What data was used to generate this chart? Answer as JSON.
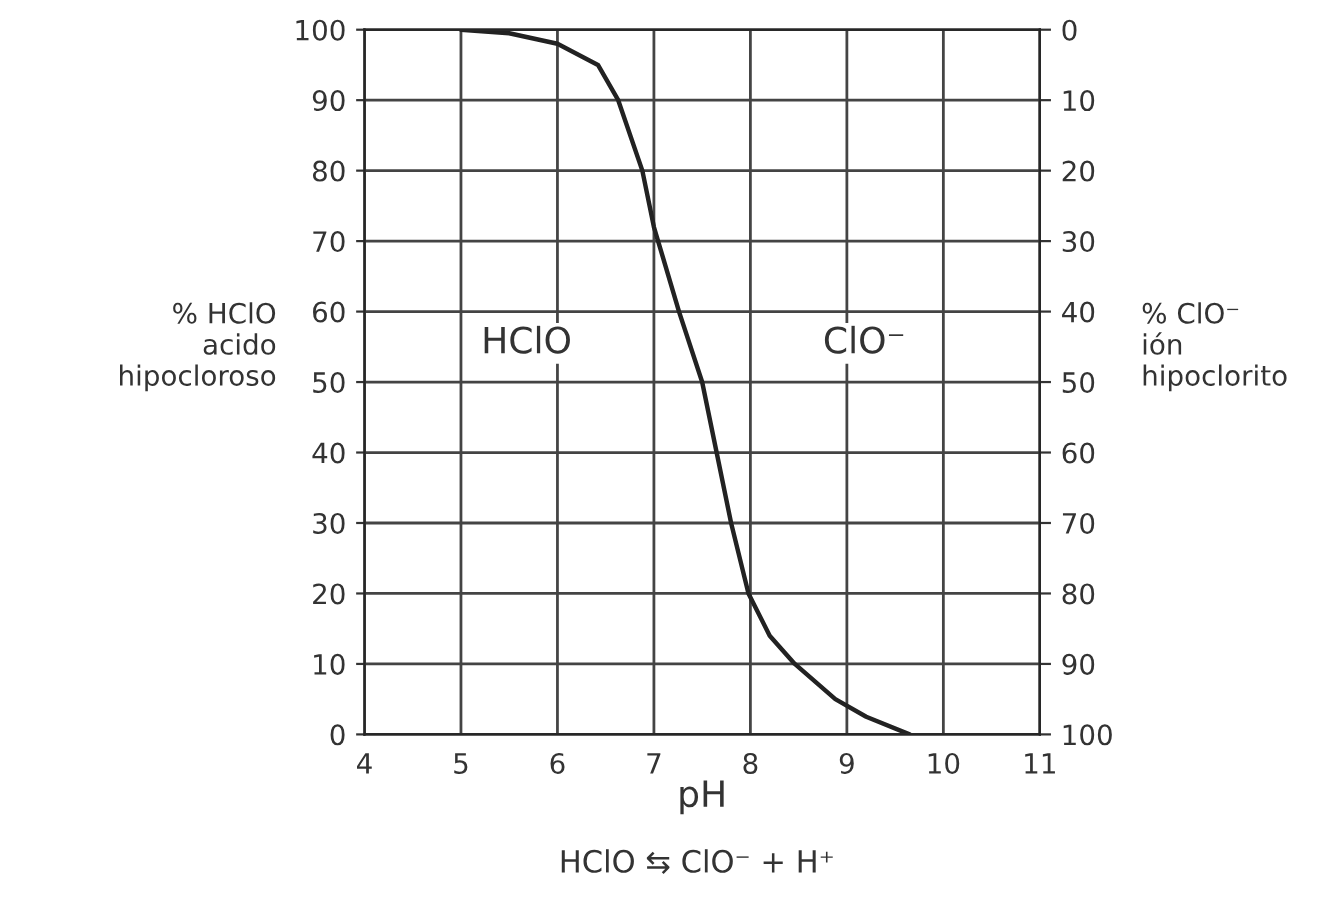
{
  "chart_data": {
    "type": "line",
    "xlabel": "pH",
    "ylabel": "% HClO\nacido\nhipocloroso",
    "y2label": "% ClO⁻\nión\nhipoclorito",
    "x": [
      5,
      5.5,
      6,
      6.42,
      6.63,
      6.88,
      7,
      7.26,
      7.5,
      7.65,
      7.8,
      7.98,
      8.2,
      8.46,
      8.88,
      9.2,
      9.65
    ],
    "series": [
      {
        "color": "#222222",
        "values": [
          100,
          99.5,
          98,
          95,
          90,
          80,
          72,
          60,
          50,
          40,
          30,
          20,
          14,
          10,
          5,
          2.5,
          0
        ]
      }
    ],
    "xlim": [
      4,
      11
    ],
    "xticks": [
      4,
      5,
      6,
      7,
      8,
      9,
      10,
      11
    ],
    "ylim": [
      0,
      100
    ],
    "yticks": [
      0,
      10,
      20,
      30,
      40,
      50,
      60,
      70,
      80,
      90,
      100
    ],
    "y2lim": [
      100,
      0
    ],
    "y2ticks": [
      0,
      10,
      20,
      30,
      40,
      50,
      60,
      70,
      80,
      90,
      100
    ],
    "grid": true,
    "marker": "none",
    "line_style": "solid",
    "legend": false,
    "annotations": [
      "HClO",
      "ClO⁻",
      "HClO ⇆ ClO⁻ + H⁺"
    ]
  }
}
